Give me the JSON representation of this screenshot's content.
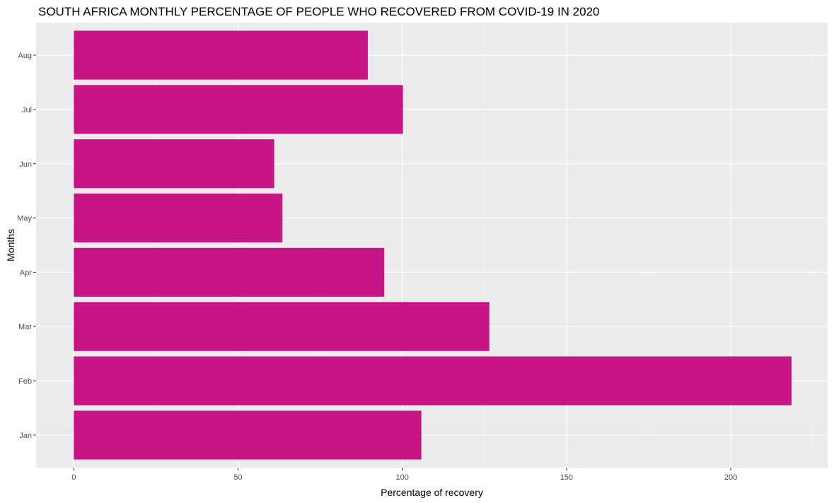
{
  "chart_data": {
    "type": "bar",
    "orientation": "horizontal",
    "title": "SOUTH AFRICA MONTHLY PERCENTAGE OF PEOPLE WHO RECOVERED FROM COVID-19 IN 2020",
    "xlabel": "Percentage of recovery",
    "ylabel": "Months",
    "categories": [
      "Jan",
      "Feb",
      "Mar",
      "Apr",
      "May",
      "Jun",
      "Jul",
      "Aug"
    ],
    "values": [
      105.8,
      218.5,
      126.5,
      94.5,
      63.5,
      61.0,
      100.2,
      89.5
    ],
    "xlim": [
      -11.5,
      229.5
    ],
    "x_ticks": [
      0,
      50,
      100,
      150,
      200
    ],
    "grid": true,
    "colors": {
      "bar": "#C71585",
      "panel_background": "#EBEBEB",
      "grid_major": "#FFFFFF",
      "grid_minor": "#F5F5F5"
    }
  }
}
